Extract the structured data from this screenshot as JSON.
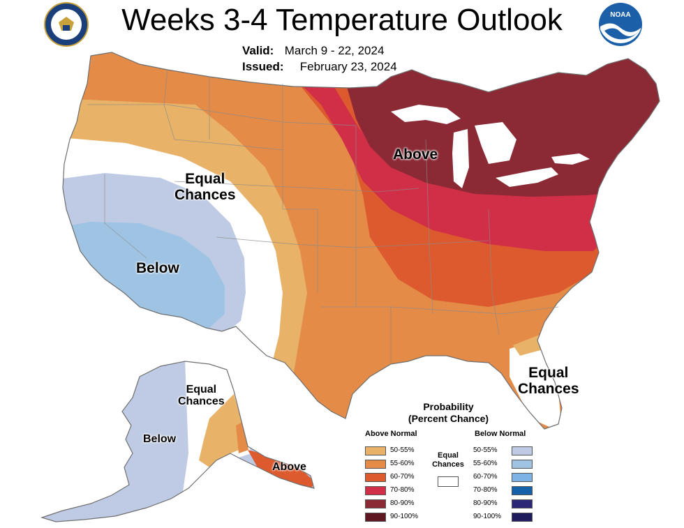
{
  "header": {
    "title": "Weeks 3-4 Temperature Outlook",
    "valid_key": "Valid:",
    "valid_value": "March 9 - 22, 2024",
    "issued_key": "Issued:",
    "issued_value": "February 23, 2024"
  },
  "logos": {
    "doc_icon": "department-of-commerce-seal-icon",
    "noaa_icon": "noaa-logo-icon",
    "noaa_text": "NOAA"
  },
  "map_labels": {
    "above": "Above",
    "below_conus": "Below",
    "equal_chances_west": [
      "Equal",
      "Chances"
    ],
    "equal_chances_florida": [
      "Equal",
      "Chances"
    ],
    "equal_chances_alaska": [
      "Equal",
      "Chances"
    ],
    "below_alaska": "Below",
    "above_alaska": "Above"
  },
  "legend": {
    "title_line1": "Probability",
    "title_line2": "(Percent Chance)",
    "above_header": "Above Normal",
    "below_header": "Below Normal",
    "equal_line1": "Equal",
    "equal_line2": "Chances",
    "above": [
      {
        "label": "50-55%",
        "color": "#E8B368"
      },
      {
        "label": "55-60%",
        "color": "#E48B48"
      },
      {
        "label": "60-70%",
        "color": "#DD5A2E"
      },
      {
        "label": "70-80%",
        "color": "#D12F47"
      },
      {
        "label": "80-90%",
        "color": "#8B2A35"
      },
      {
        "label": "90-100%",
        "color": "#5E1620"
      }
    ],
    "below": [
      {
        "label": "50-55%",
        "color": "#BFCBE4"
      },
      {
        "label": "55-60%",
        "color": "#9EC3E3"
      },
      {
        "label": "60-70%",
        "color": "#7CB4E6"
      },
      {
        "label": "70-80%",
        "color": "#1562A8"
      },
      {
        "label": "80-90%",
        "color": "#2B2877"
      },
      {
        "label": "90-100%",
        "color": "#1E1C5C"
      }
    ]
  },
  "colors": {
    "water": "#ffffff",
    "border": "#6e6e6e",
    "equal_chances": "#ffffff"
  }
}
